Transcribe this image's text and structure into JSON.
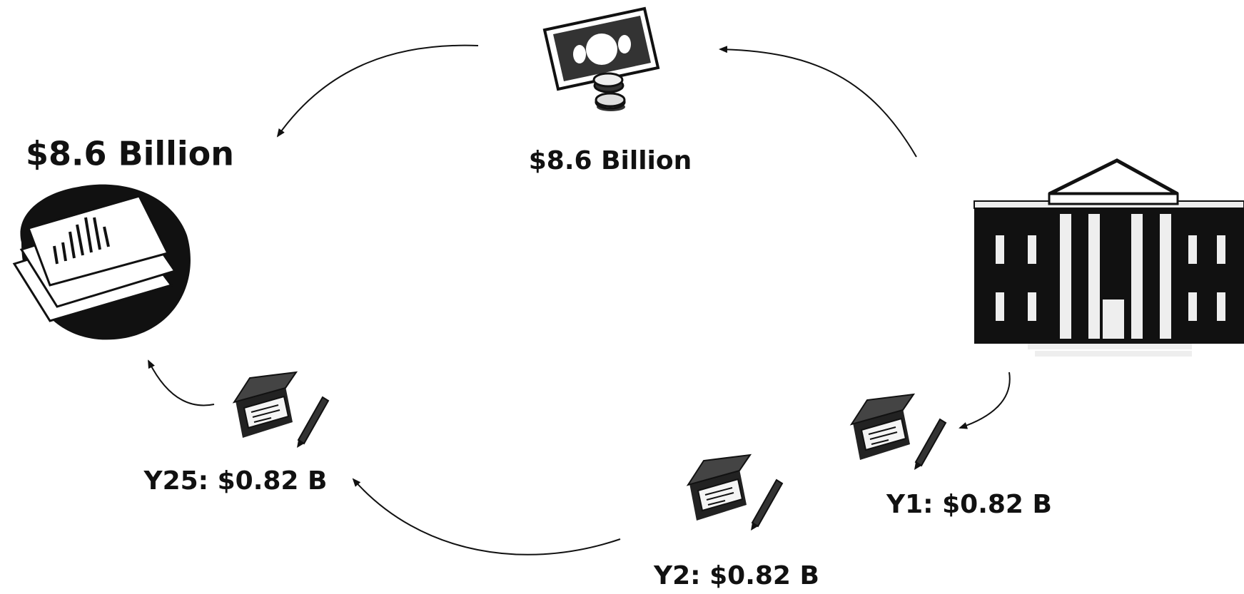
{
  "nodes": [
    {
      "label": "$8.6 Billion"
    },
    {
      "label": "$8.6 Billion"
    },
    {
      "label": "Y1: $0.82 B"
    },
    {
      "label": "Y2: $0.82 B"
    },
    {
      "label": "Y25: $0.82 B"
    }
  ]
}
